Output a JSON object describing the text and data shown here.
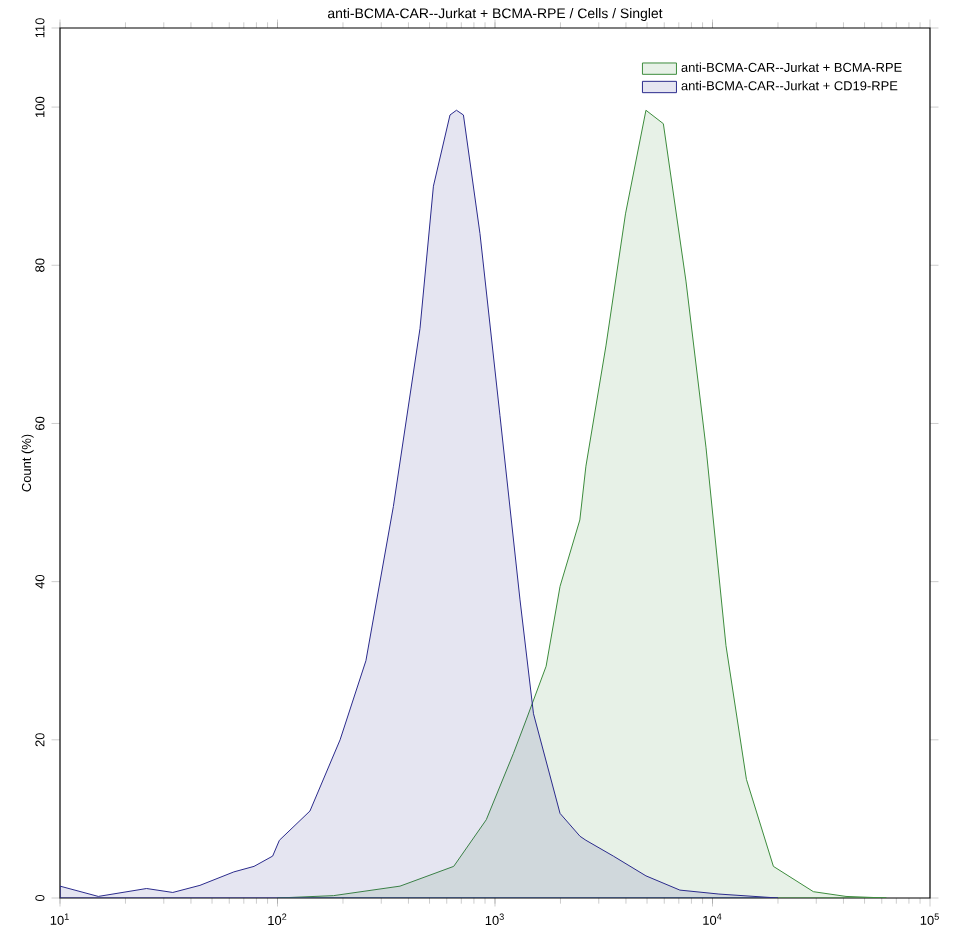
{
  "chart_data": {
    "type": "area",
    "title": "anti-BCMA-CAR--Jurkat + BCMA-RPE / Cells / Singlet",
    "ylabel": "Count (%)",
    "log": "x",
    "xlim": [
      10,
      100000
    ],
    "ylim": [
      0,
      110
    ],
    "xticks": [
      {
        "value": 10,
        "label": "10$^{1}$"
      },
      {
        "value": 100,
        "label": "10$^{2}$"
      },
      {
        "value": 1000,
        "label": "10$^{3}$"
      },
      {
        "value": 10000,
        "label": "10$^{4}$"
      },
      {
        "value": 100000,
        "label": "10$^{5}$"
      }
    ],
    "yticks": [
      0,
      20,
      40,
      60,
      80,
      100,
      110
    ],
    "legend": "top right",
    "grid": false,
    "series": [
      {
        "name": "anti-BCMA-CAR--Jurkat + BCMA-RPE",
        "color": "#3c8c3c",
        "x": [
          100,
          181,
          366,
          646,
          912,
          1216,
          1390,
          1718,
          1991,
          2455,
          2618,
          3236,
          3981,
          4943,
          5943,
          7551,
          9333,
          11535,
          14322,
          19055,
          29100,
          41100,
          63000
        ],
        "values": [
          0,
          0.3,
          1.5,
          4,
          9.9,
          18.3,
          22.5,
          29.3,
          39.4,
          47.8,
          54.6,
          69.8,
          86.5,
          99.6,
          97.9,
          78,
          57,
          31.9,
          15,
          4,
          0.8,
          0.2,
          0
        ]
      },
      {
        "name": "anti-BCMA-CAR--Jurkat + CD19-RPE",
        "color": "#2a2a8c",
        "x": [
          10,
          15,
          25,
          33,
          44,
          63,
          78,
          95,
          102,
          141,
          194,
          255,
          341,
          452,
          521,
          621,
          665,
          716,
          853,
          1054,
          1303,
          1503,
          1991,
          2460,
          2618,
          3500,
          4943,
          7079,
          10700,
          20000
        ],
        "values": [
          1.5,
          0.2,
          1.2,
          0.7,
          1.6,
          3.3,
          4,
          5.3,
          7.3,
          11,
          20,
          30,
          49.5,
          72,
          90,
          99,
          99.6,
          99,
          84,
          61,
          37.7,
          23.3,
          10.7,
          7.8,
          7.3,
          5.3,
          2.8,
          1,
          0.5,
          0
        ]
      }
    ]
  }
}
